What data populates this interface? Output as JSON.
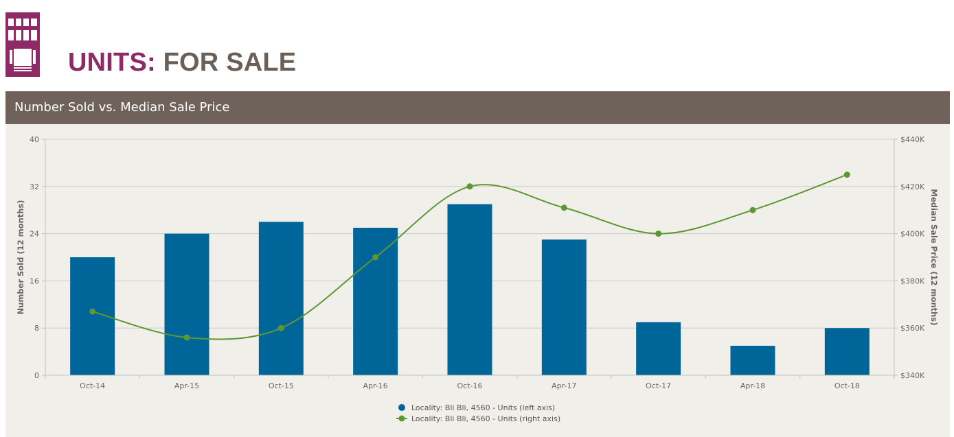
{
  "header": {
    "title_part1": "UNITS:",
    "title_part2": "FOR SALE"
  },
  "section": {
    "title": "Number Sold vs. Median Sale Price"
  },
  "colors": {
    "brand": "#8e2a66",
    "title_gray": "#6b6059",
    "header_bg": "#6f625a",
    "panel_bg": "#f0efea",
    "bar": "#006699",
    "line": "#5e9732"
  },
  "chart_data": {
    "type": "bar",
    "categories": [
      "Oct-14",
      "Apr-15",
      "Oct-15",
      "Apr-16",
      "Oct-16",
      "Apr-17",
      "Oct-17",
      "Apr-18",
      "Oct-18"
    ],
    "series": [
      {
        "name": "Locality: Bli Bli, 4560 - Units (left axis)",
        "type": "bar",
        "axis": "left",
        "values": [
          20,
          24,
          26,
          25,
          29,
          23,
          9,
          5,
          8
        ]
      },
      {
        "name": "Locality: Bli Bli, 4560 - Units (right axis)",
        "type": "line",
        "axis": "right",
        "values": [
          367000,
          356000,
          360000,
          390000,
          420000,
          411000,
          400000,
          410000,
          425000
        ]
      }
    ],
    "ylabel_left": "Number Sold (12 months)",
    "ylabel_right": "Median Sale Price (12 months)",
    "ylim_left": [
      0,
      40
    ],
    "ylim_right": [
      340000,
      440000
    ],
    "yticks_left": [
      "0",
      "8",
      "16",
      "24",
      "32",
      "40"
    ],
    "yticks_right": [
      "$340K",
      "$360K",
      "$380K",
      "$400K",
      "$420K",
      "$440K"
    ],
    "grid": true,
    "legend_position": "bottom-center"
  }
}
